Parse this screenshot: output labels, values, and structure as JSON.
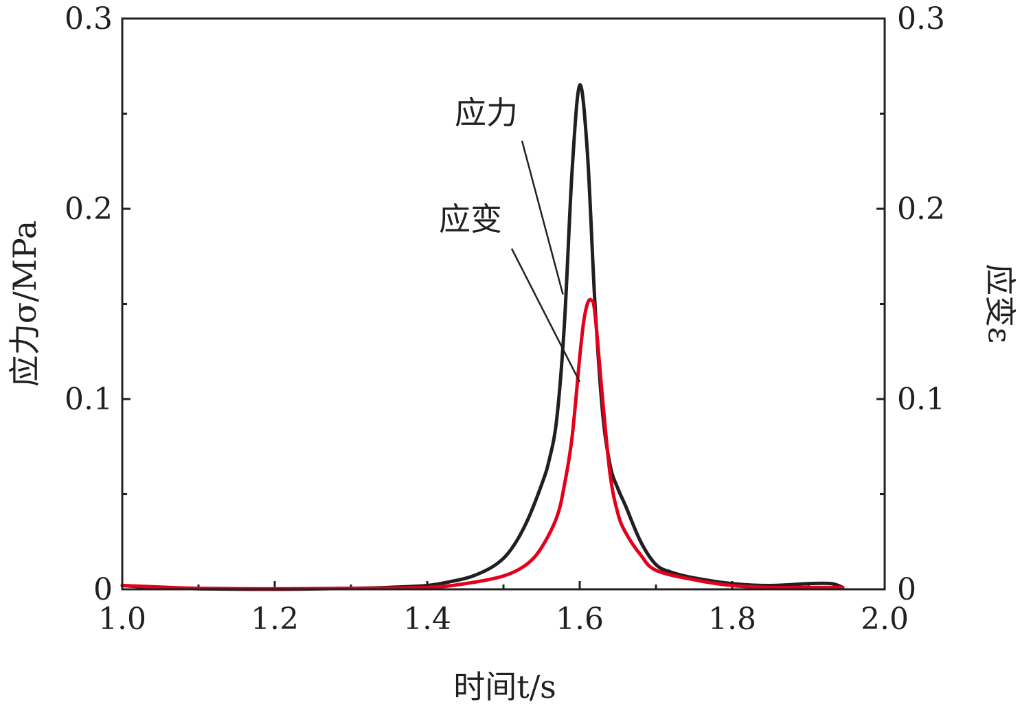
{
  "chart_data": {
    "type": "line",
    "title": "",
    "xlabel": "时间t/s",
    "ylabel_left": "应力σ/MPa",
    "ylabel_right": "应变ε",
    "xlim": [
      1.0,
      2.0
    ],
    "ylim_left": [
      0,
      0.3
    ],
    "ylim_right": [
      0,
      0.3
    ],
    "x_ticks": [
      "1.0",
      "1.2",
      "1.4",
      "1.6",
      "1.8",
      "2.0"
    ],
    "y_ticks_left": [
      "0",
      "0.1",
      "0.2",
      "0.3"
    ],
    "y_ticks_right": [
      "0",
      "0.1",
      "0.2",
      "0.3"
    ],
    "grid": false,
    "colors": {
      "stress": "#231f20",
      "strain": "#e4001b",
      "axis": "#231f20"
    },
    "series": [
      {
        "name": "应力",
        "axis": "left",
        "x": [
          1.0,
          1.05,
          1.1,
          1.2,
          1.3,
          1.35,
          1.4,
          1.43,
          1.46,
          1.49,
          1.51,
          1.53,
          1.55,
          1.56,
          1.57,
          1.58,
          1.59,
          1.6,
          1.61,
          1.62,
          1.63,
          1.64,
          1.65,
          1.66,
          1.68,
          1.7,
          1.72,
          1.75,
          1.8,
          1.85,
          1.9,
          1.93,
          1.945
        ],
        "y": [
          0.002,
          0.0008,
          0.0003,
          0.0,
          0.0005,
          0.001,
          0.002,
          0.004,
          0.007,
          0.013,
          0.021,
          0.035,
          0.055,
          0.068,
          0.09,
          0.14,
          0.22,
          0.265,
          0.23,
          0.15,
          0.093,
          0.065,
          0.053,
          0.044,
          0.025,
          0.013,
          0.009,
          0.006,
          0.003,
          0.002,
          0.003,
          0.003,
          0.001
        ]
      },
      {
        "name": "应变",
        "axis": "right",
        "x": [
          1.0,
          1.05,
          1.1,
          1.2,
          1.3,
          1.4,
          1.45,
          1.5,
          1.53,
          1.55,
          1.57,
          1.58,
          1.59,
          1.6,
          1.605,
          1.61,
          1.615,
          1.62,
          1.63,
          1.64,
          1.65,
          1.66,
          1.68,
          1.7,
          1.75,
          1.8,
          1.85,
          1.9,
          1.945
        ],
        "y": [
          0.002,
          0.0012,
          0.0005,
          0.0002,
          0.0005,
          0.001,
          0.003,
          0.007,
          0.013,
          0.022,
          0.038,
          0.055,
          0.08,
          0.122,
          0.14,
          0.15,
          0.152,
          0.145,
          0.1,
          0.06,
          0.04,
          0.03,
          0.018,
          0.01,
          0.005,
          0.002,
          0.001,
          0.001,
          0.001
        ]
      }
    ],
    "annotations": [
      {
        "text": "应力",
        "target_series": "应力"
      },
      {
        "text": "应变",
        "target_series": "应变"
      }
    ]
  }
}
